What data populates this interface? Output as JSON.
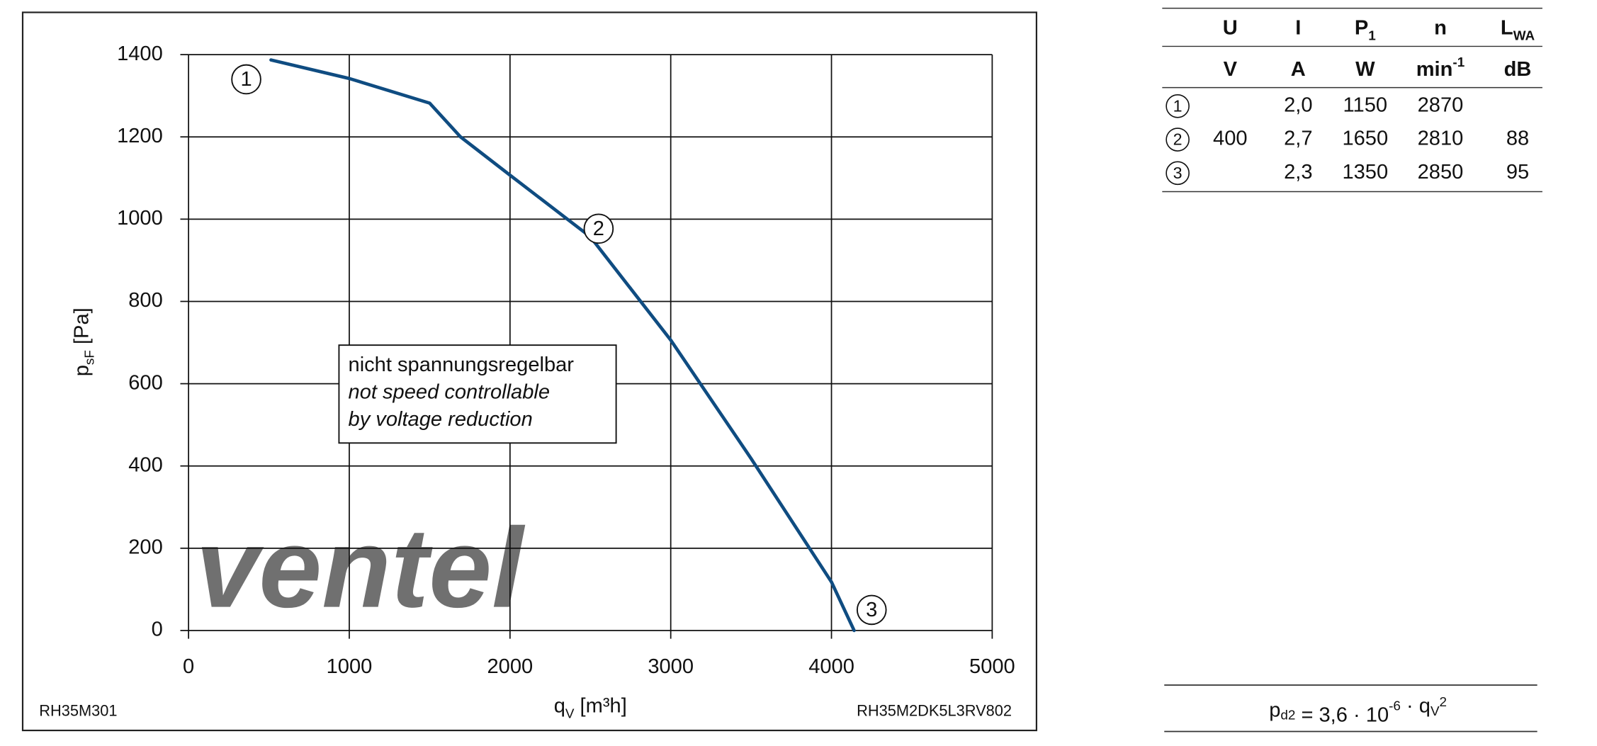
{
  "chart_data": {
    "type": "line",
    "x_label": {
      "text": "q",
      "sub": "V",
      "rest": " [m³h]"
    },
    "y_label": {
      "text": "p",
      "sub": "sF",
      "rest": " [Pa]"
    },
    "x": [
      513,
      1000,
      1500,
      1692,
      2000,
      2500,
      3000,
      3500,
      4000,
      4141
    ],
    "series": [
      {
        "color": "#0f4c81",
        "values": [
          1387,
          1342,
          1282,
          1200,
          1107,
          957,
          706,
          418,
          118,
          0
        ]
      }
    ],
    "xlim": [
      0,
      5000
    ],
    "xticks": [
      0,
      1000,
      2000,
      3000,
      4000,
      5000
    ],
    "ylim": [
      0,
      1400
    ],
    "yticks": [
      0,
      200,
      400,
      600,
      800,
      1000,
      1200,
      1400
    ],
    "grid": true,
    "point_labels": [
      "1",
      "2",
      "3"
    ],
    "note": [
      "nicht spannungsregelbar",
      "not speed controllable",
      "by voltage reduction"
    ],
    "footer_left": "RH35M301",
    "footer_right": "RH35M2DK5L3RV802",
    "watermark": "ventel"
  },
  "table": {
    "header": [
      {
        "text": "U"
      },
      {
        "text": "I"
      },
      {
        "text": "P",
        "sub": "1"
      },
      {
        "text": "n"
      },
      {
        "text": "L",
        "sub": "WA"
      }
    ],
    "units": [
      {
        "text": "V"
      },
      {
        "text": "A"
      },
      {
        "text": "W"
      },
      {
        "text": "min",
        "sup": "-1"
      },
      {
        "text": "dB"
      }
    ],
    "rows": [
      {
        "marker": "1",
        "cells": [
          null,
          "2,0",
          "1150",
          "2870",
          null
        ]
      },
      {
        "marker": "2",
        "cells": [
          "400",
          "2,7",
          "1650",
          "2810",
          "88"
        ]
      },
      {
        "marker": "3",
        "cells": [
          null,
          "2,3",
          "1350",
          "2850",
          "95"
        ]
      }
    ]
  },
  "formula": [
    {
      "text": "p"
    },
    {
      "text": "d2",
      "sub": true
    },
    {
      "text": " = 3,6 · 10"
    },
    {
      "text": "-6",
      "sup": true
    },
    {
      "text": " · q"
    },
    {
      "text": "V",
      "sub": true
    },
    {
      "text": "2",
      "sup": true
    }
  ]
}
